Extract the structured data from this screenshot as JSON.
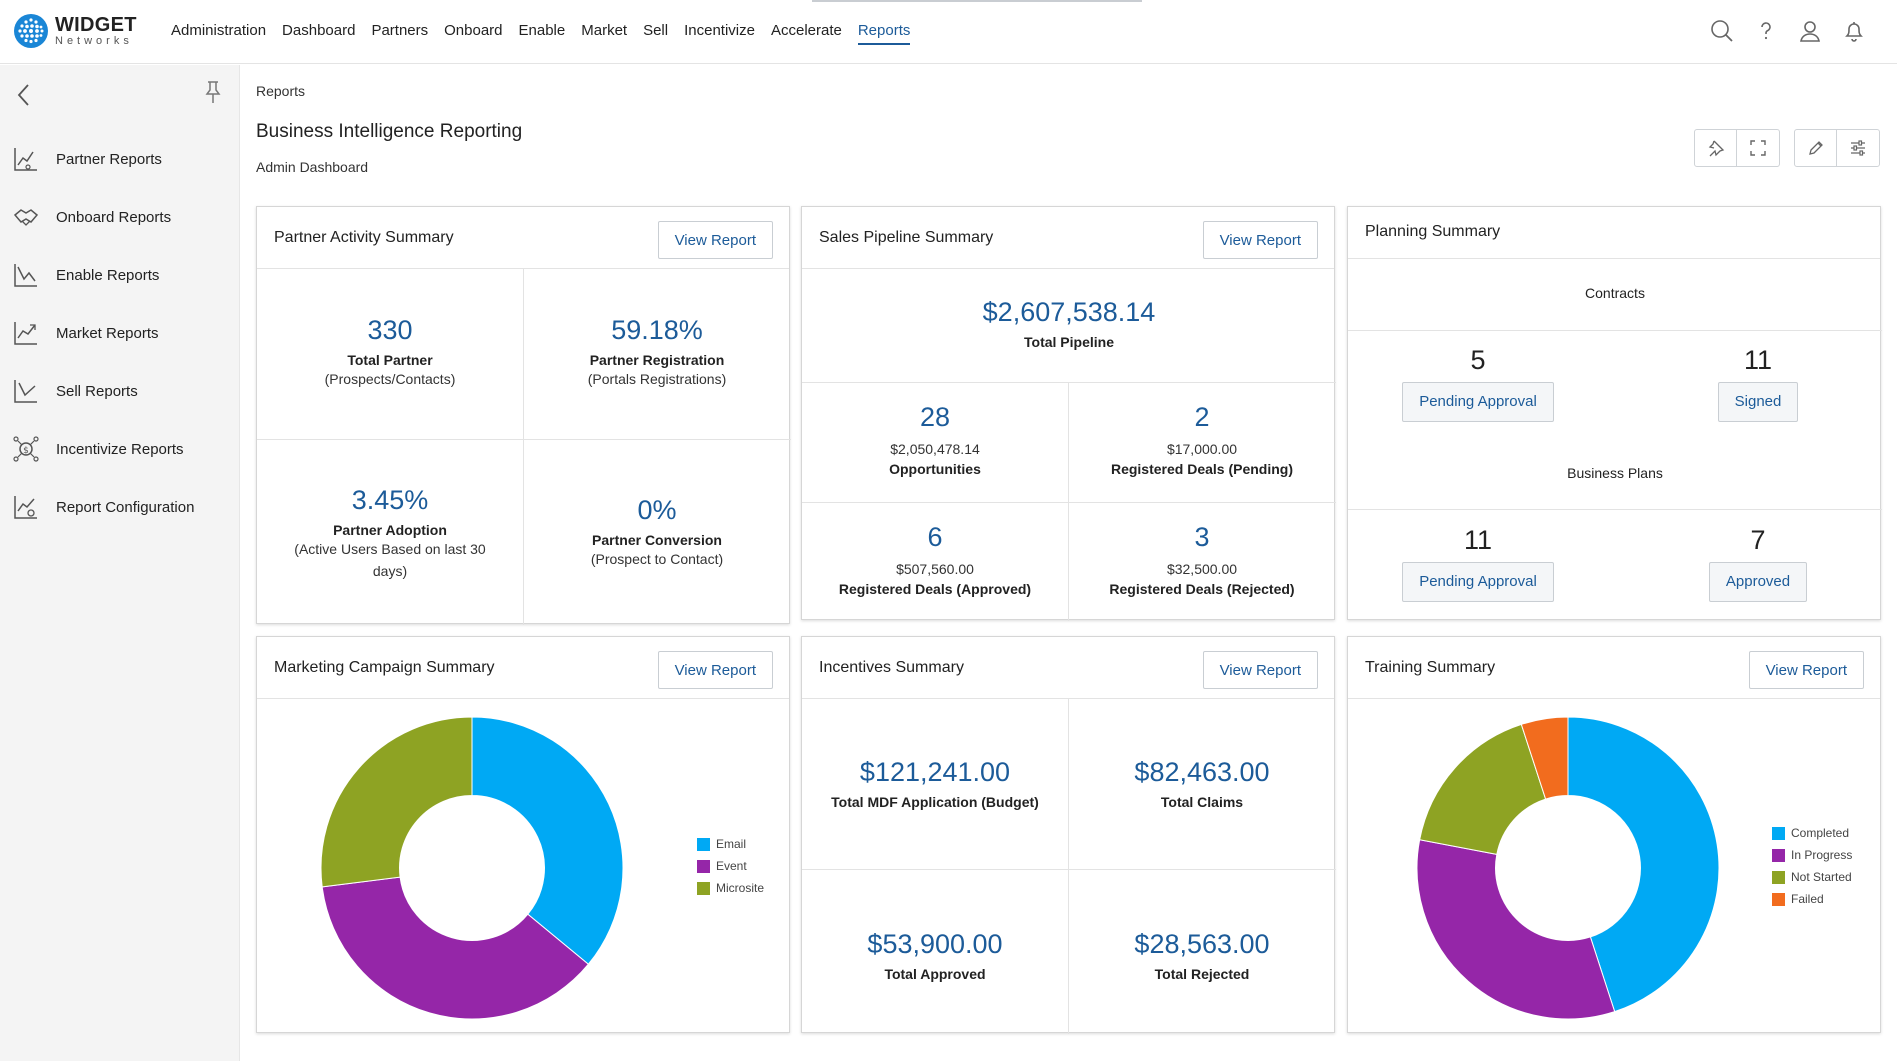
{
  "brand": {
    "name": "WIDGET",
    "sub": "Networks"
  },
  "nav": [
    {
      "label": "Administration"
    },
    {
      "label": "Dashboard"
    },
    {
      "label": "Partners"
    },
    {
      "label": "Onboard"
    },
    {
      "label": "Enable"
    },
    {
      "label": "Market"
    },
    {
      "label": "Sell"
    },
    {
      "label": "Incentivize"
    },
    {
      "label": "Accelerate"
    },
    {
      "label": "Reports"
    }
  ],
  "nav_active": "Reports",
  "sidebar": {
    "items": [
      {
        "label": "Partner Reports"
      },
      {
        "label": "Onboard Reports"
      },
      {
        "label": "Enable Reports"
      },
      {
        "label": "Market Reports"
      },
      {
        "label": "Sell Reports"
      },
      {
        "label": "Incentivize Reports"
      },
      {
        "label": "Report Configuration"
      }
    ]
  },
  "breadcrumb": "Reports",
  "page": {
    "title": "Business Intelligence Reporting",
    "subtitle": "Admin Dashboard"
  },
  "common": {
    "view_report": "View Report"
  },
  "partner_activity": {
    "title": "Partner Activity Summary",
    "total_partner": {
      "value": "330",
      "label": "Total Partner",
      "sub": "(Prospects/Contacts)"
    },
    "registration": {
      "value": "59.18%",
      "label": "Partner Registration",
      "sub": "(Portals Registrations)"
    },
    "adoption": {
      "value": "3.45%",
      "label": "Partner Adoption",
      "sub": "(Active Users Based on last 30 days)"
    },
    "conversion": {
      "value": "0%",
      "label": "Partner Conversion",
      "sub": "(Prospect to Contact)"
    }
  },
  "sales_pipeline": {
    "title": "Sales Pipeline Summary",
    "total": {
      "value": "$2,607,538.14",
      "label": "Total Pipeline"
    },
    "opportunities": {
      "count": "28",
      "amount": "$2,050,478.14",
      "label": "Opportunities"
    },
    "pending": {
      "count": "2",
      "amount": "$17,000.00",
      "label": "Registered Deals (Pending)"
    },
    "approved": {
      "count": "6",
      "amount": "$507,560.00",
      "label": "Registered Deals (Approved)"
    },
    "rejected": {
      "count": "3",
      "amount": "$32,500.00",
      "label": "Registered Deals (Rejected)"
    }
  },
  "planning": {
    "title": "Planning Summary",
    "contracts": {
      "heading": "Contracts",
      "pending_count": "5",
      "pending_label": "Pending Approval",
      "signed_count": "11",
      "signed_label": "Signed"
    },
    "business_plans": {
      "heading": "Business Plans",
      "pending_count": "11",
      "pending_label": "Pending Approval",
      "approved_count": "7",
      "approved_label": "Approved"
    }
  },
  "marketing": {
    "title": "Marketing Campaign Summary"
  },
  "incentives": {
    "title": "Incentives Summary",
    "mdf": {
      "value": "$121,241.00",
      "label": "Total MDF Application (Budget)"
    },
    "claims": {
      "value": "$82,463.00",
      "label": "Total Claims"
    },
    "approved": {
      "value": "$53,900.00",
      "label": "Total Approved"
    },
    "rejected": {
      "value": "$28,563.00",
      "label": "Total Rejected"
    }
  },
  "training": {
    "title": "Training Summary"
  },
  "chart_data": [
    {
      "type": "pie",
      "id": "marketing",
      "title": "Marketing Campaign Summary",
      "categories": [
        "Email",
        "Event",
        "Microsite"
      ],
      "values": [
        36,
        37,
        27
      ],
      "colors": [
        "#00a9f4",
        "#9526a8",
        "#8ea323"
      ]
    },
    {
      "type": "pie",
      "id": "training",
      "title": "Training Summary",
      "categories": [
        "Completed",
        "In Progress",
        "Not Started",
        "Failed"
      ],
      "values": [
        45,
        33,
        17,
        5
      ],
      "colors": [
        "#00a9f4",
        "#9526a8",
        "#8ea323",
        "#f26c1e"
      ]
    }
  ]
}
